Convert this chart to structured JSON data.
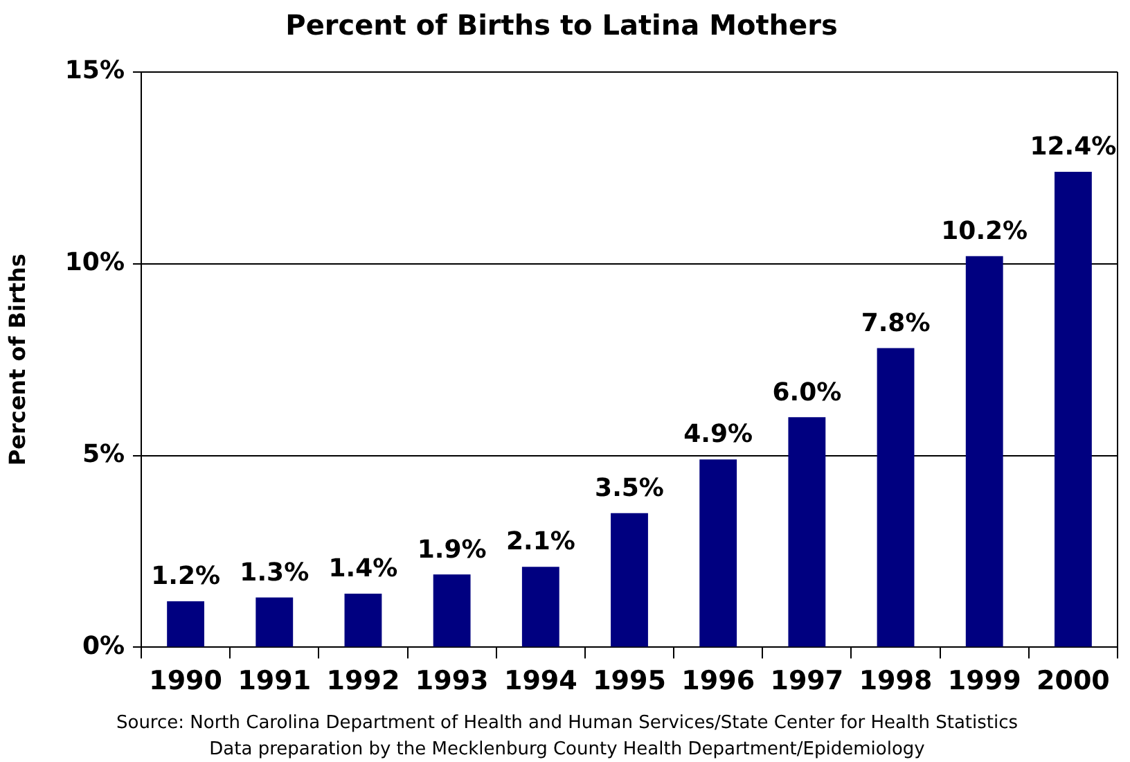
{
  "chart_data": {
    "type": "bar",
    "title": "Percent of Births to Latina Mothers",
    "ylabel": "Percent of Births",
    "categories": [
      "1990",
      "1991",
      "1992",
      "1993",
      "1994",
      "1995",
      "1996",
      "1997",
      "1998",
      "1999",
      "2000"
    ],
    "values": [
      1.2,
      1.3,
      1.4,
      1.9,
      2.1,
      3.5,
      4.9,
      6.0,
      7.8,
      10.2,
      12.4
    ],
    "color": "#000080",
    "value_labels": [
      "1.2%",
      "1.3%",
      "1.4%",
      "1.9%",
      "2.1%",
      "3.5%",
      "4.9%",
      "6.0%",
      "7.8%",
      "10.2%",
      "12.4%"
    ],
    "ylim": [
      0,
      15
    ],
    "yticks": [
      {
        "value": 0,
        "label": "0%"
      },
      {
        "value": 5,
        "label": "5%"
      },
      {
        "value": 10,
        "label": "10%"
      },
      {
        "value": 15,
        "label": "15%"
      }
    ],
    "grid": "y",
    "annotations": [
      "Source: North Carolina Department of Health and Human Services/State Center for Health Statistics",
      "Data preparation by the Mecklenburg County Health Department/Epidemiology"
    ]
  }
}
